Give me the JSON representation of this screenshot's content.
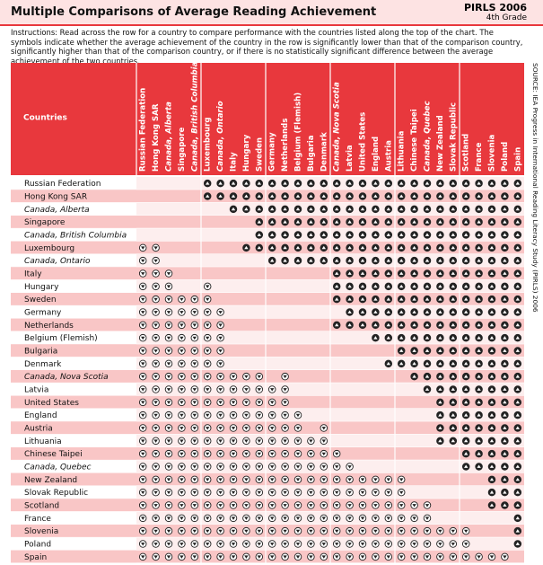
{
  "header": {
    "title": "Multiple Comparisons of Average Reading Achievement",
    "study": "PIRLS 2006",
    "grade": "4th Grade"
  },
  "instructions": "Instructions: Read across the row for a country to compare performance with the countries listed along the top of the chart. The symbols indicate whether the average achievement of the country in the row is significantly lower than that of the comparison country, significantly higher than that of the comparison country, or if there is no statistically significant difference between the average achievement of the two countries.",
  "source": "SOURCE: IEA Progress in International Reading Literacy Study (PIRLS) 2006",
  "table": {
    "countries_header": "Countries",
    "columns": [
      {
        "name": "Russian Federation"
      },
      {
        "name": "Hong Kong SAR"
      },
      {
        "name": "Canada, Alberta",
        "italic": true
      },
      {
        "name": "Singapore"
      },
      {
        "name": "Canada, British Columbia",
        "italic": true
      },
      {
        "name": "Luxembourg"
      },
      {
        "name": "Canada, Ontario",
        "italic": true
      },
      {
        "name": "Italy"
      },
      {
        "name": "Hungary"
      },
      {
        "name": "Sweden"
      },
      {
        "name": "Germany"
      },
      {
        "name": "Netherlands"
      },
      {
        "name": "Belgium (Flemish)"
      },
      {
        "name": "Bulgaria"
      },
      {
        "name": "Denmark"
      },
      {
        "name": "Canada, Nova Scotia",
        "italic": true
      },
      {
        "name": "Latvia"
      },
      {
        "name": "United States"
      },
      {
        "name": "England"
      },
      {
        "name": "Austria"
      },
      {
        "name": "Lithuania"
      },
      {
        "name": "Chinese Taipei"
      },
      {
        "name": "Canada, Quebec",
        "italic": true
      },
      {
        "name": "New Zealand"
      },
      {
        "name": "Slovak Republic"
      },
      {
        "name": "Scotland"
      },
      {
        "name": "France"
      },
      {
        "name": "Slovenia"
      },
      {
        "name": "Poland"
      },
      {
        "name": "Spain"
      }
    ],
    "rows": [
      {
        "country": "Russian Federation",
        "cells": [
          0,
          0,
          0,
          0,
          0,
          1,
          1,
          1,
          1,
          1,
          1,
          1,
          1,
          1,
          1,
          1,
          1,
          1,
          1,
          1,
          1,
          1,
          1,
          1,
          1,
          1,
          1,
          1,
          1,
          1
        ]
      },
      {
        "country": "Hong Kong SAR",
        "cells": [
          0,
          0,
          0,
          0,
          0,
          1,
          1,
          1,
          1,
          1,
          1,
          1,
          1,
          1,
          1,
          1,
          1,
          1,
          1,
          1,
          1,
          1,
          1,
          1,
          1,
          1,
          1,
          1,
          1,
          1
        ]
      },
      {
        "country": "Canada, Alberta",
        "italic": true,
        "cells": [
          0,
          0,
          0,
          0,
          0,
          0,
          0,
          1,
          1,
          1,
          1,
          1,
          1,
          1,
          1,
          1,
          1,
          1,
          1,
          1,
          1,
          1,
          1,
          1,
          1,
          1,
          1,
          1,
          1,
          1
        ]
      },
      {
        "country": "Singapore",
        "cells": [
          0,
          0,
          0,
          0,
          0,
          0,
          0,
          0,
          0,
          1,
          1,
          1,
          1,
          1,
          1,
          1,
          1,
          1,
          1,
          1,
          1,
          1,
          1,
          1,
          1,
          1,
          1,
          1,
          1,
          1
        ]
      },
      {
        "country": "Canada, British Columbia",
        "italic": true,
        "cells": [
          0,
          0,
          0,
          0,
          0,
          0,
          0,
          0,
          0,
          1,
          1,
          1,
          1,
          1,
          1,
          1,
          1,
          1,
          1,
          1,
          1,
          1,
          1,
          1,
          1,
          1,
          1,
          1,
          1,
          1
        ]
      },
      {
        "country": "Luxembourg",
        "cells": [
          -1,
          -1,
          0,
          0,
          0,
          0,
          0,
          0,
          1,
          1,
          1,
          1,
          1,
          1,
          1,
          1,
          1,
          1,
          1,
          1,
          1,
          1,
          1,
          1,
          1,
          1,
          1,
          1,
          1,
          1
        ]
      },
      {
        "country": "Canada, Ontario",
        "italic": true,
        "cells": [
          -1,
          -1,
          0,
          0,
          0,
          0,
          0,
          0,
          0,
          0,
          1,
          1,
          1,
          1,
          1,
          1,
          1,
          1,
          1,
          1,
          1,
          1,
          1,
          1,
          1,
          1,
          1,
          1,
          1,
          1
        ]
      },
      {
        "country": "Italy",
        "cells": [
          -1,
          -1,
          -1,
          0,
          0,
          0,
          0,
          0,
          0,
          0,
          0,
          0,
          0,
          0,
          0,
          1,
          1,
          1,
          1,
          1,
          1,
          1,
          1,
          1,
          1,
          1,
          1,
          1,
          1,
          1
        ]
      },
      {
        "country": "Hungary",
        "cells": [
          -1,
          -1,
          -1,
          0,
          0,
          -1,
          0,
          0,
          0,
          0,
          0,
          0,
          0,
          0,
          0,
          1,
          1,
          1,
          1,
          1,
          1,
          1,
          1,
          1,
          1,
          1,
          1,
          1,
          1,
          1
        ]
      },
      {
        "country": "Sweden",
        "cells": [
          -1,
          -1,
          -1,
          -1,
          -1,
          -1,
          0,
          0,
          0,
          0,
          0,
          0,
          0,
          0,
          0,
          1,
          1,
          1,
          1,
          1,
          1,
          1,
          1,
          1,
          1,
          1,
          1,
          1,
          1,
          1
        ]
      },
      {
        "country": "Germany",
        "cells": [
          -1,
          -1,
          -1,
          -1,
          -1,
          -1,
          -1,
          0,
          0,
          0,
          0,
          0,
          0,
          0,
          0,
          0,
          1,
          1,
          1,
          1,
          1,
          1,
          1,
          1,
          1,
          1,
          1,
          1,
          1,
          1
        ]
      },
      {
        "country": "Netherlands",
        "cells": [
          -1,
          -1,
          -1,
          -1,
          -1,
          -1,
          -1,
          0,
          0,
          0,
          0,
          0,
          0,
          0,
          0,
          1,
          1,
          1,
          1,
          1,
          1,
          1,
          1,
          1,
          1,
          1,
          1,
          1,
          1,
          1
        ]
      },
      {
        "country": "Belgium (Flemish)",
        "cells": [
          -1,
          -1,
          -1,
          -1,
          -1,
          -1,
          -1,
          0,
          0,
          0,
          0,
          0,
          0,
          0,
          0,
          0,
          0,
          0,
          1,
          1,
          1,
          1,
          1,
          1,
          1,
          1,
          1,
          1,
          1,
          1
        ]
      },
      {
        "country": "Bulgaria",
        "cells": [
          -1,
          -1,
          -1,
          -1,
          -1,
          -1,
          -1,
          0,
          0,
          0,
          0,
          0,
          0,
          0,
          0,
          0,
          0,
          0,
          0,
          0,
          1,
          1,
          1,
          1,
          1,
          1,
          1,
          1,
          1,
          1
        ]
      },
      {
        "country": "Denmark",
        "cells": [
          -1,
          -1,
          -1,
          -1,
          -1,
          -1,
          -1,
          0,
          0,
          0,
          0,
          0,
          0,
          0,
          0,
          0,
          0,
          0,
          0,
          1,
          1,
          1,
          1,
          1,
          1,
          1,
          1,
          1,
          1,
          1
        ]
      },
      {
        "country": "Canada, Nova Scotia",
        "italic": true,
        "cells": [
          -1,
          -1,
          -1,
          -1,
          -1,
          -1,
          -1,
          -1,
          -1,
          -1,
          0,
          -1,
          0,
          0,
          0,
          0,
          0,
          0,
          0,
          0,
          0,
          1,
          1,
          1,
          1,
          1,
          1,
          1,
          1,
          1
        ]
      },
      {
        "country": "Latvia",
        "cells": [
          -1,
          -1,
          -1,
          -1,
          -1,
          -1,
          -1,
          -1,
          -1,
          -1,
          -1,
          -1,
          0,
          0,
          0,
          0,
          0,
          0,
          0,
          0,
          0,
          0,
          1,
          1,
          1,
          1,
          1,
          1,
          1,
          1
        ]
      },
      {
        "country": "United States",
        "cells": [
          -1,
          -1,
          -1,
          -1,
          -1,
          -1,
          -1,
          -1,
          -1,
          -1,
          -1,
          -1,
          0,
          0,
          0,
          0,
          0,
          0,
          0,
          0,
          0,
          0,
          0,
          1,
          1,
          1,
          1,
          1,
          1,
          1
        ]
      },
      {
        "country": "England",
        "cells": [
          -1,
          -1,
          -1,
          -1,
          -1,
          -1,
          -1,
          -1,
          -1,
          -1,
          -1,
          -1,
          -1,
          0,
          0,
          0,
          0,
          0,
          0,
          0,
          0,
          0,
          0,
          1,
          1,
          1,
          1,
          1,
          1,
          1
        ]
      },
      {
        "country": "Austria",
        "cells": [
          -1,
          -1,
          -1,
          -1,
          -1,
          -1,
          -1,
          -1,
          -1,
          -1,
          -1,
          -1,
          -1,
          0,
          -1,
          0,
          0,
          0,
          0,
          0,
          0,
          0,
          0,
          1,
          1,
          1,
          1,
          1,
          1,
          1
        ]
      },
      {
        "country": "Lithuania",
        "cells": [
          -1,
          -1,
          -1,
          -1,
          -1,
          -1,
          -1,
          -1,
          -1,
          -1,
          -1,
          -1,
          -1,
          -1,
          -1,
          0,
          0,
          0,
          0,
          0,
          0,
          0,
          0,
          1,
          1,
          1,
          1,
          1,
          1,
          1
        ]
      },
      {
        "country": "Chinese Taipei",
        "cells": [
          -1,
          -1,
          -1,
          -1,
          -1,
          -1,
          -1,
          -1,
          -1,
          -1,
          -1,
          -1,
          -1,
          -1,
          -1,
          -1,
          0,
          0,
          0,
          0,
          0,
          0,
          0,
          0,
          0,
          1,
          1,
          1,
          1,
          1
        ]
      },
      {
        "country": "Canada, Quebec",
        "italic": true,
        "cells": [
          -1,
          -1,
          -1,
          -1,
          -1,
          -1,
          -1,
          -1,
          -1,
          -1,
          -1,
          -1,
          -1,
          -1,
          -1,
          -1,
          -1,
          0,
          0,
          0,
          0,
          0,
          0,
          0,
          0,
          1,
          1,
          1,
          1,
          1
        ]
      },
      {
        "country": "New Zealand",
        "cells": [
          -1,
          -1,
          -1,
          -1,
          -1,
          -1,
          -1,
          -1,
          -1,
          -1,
          -1,
          -1,
          -1,
          -1,
          -1,
          -1,
          -1,
          -1,
          -1,
          -1,
          -1,
          0,
          0,
          0,
          0,
          0,
          0,
          1,
          1,
          1
        ]
      },
      {
        "country": "Slovak Republic",
        "cells": [
          -1,
          -1,
          -1,
          -1,
          -1,
          -1,
          -1,
          -1,
          -1,
          -1,
          -1,
          -1,
          -1,
          -1,
          -1,
          -1,
          -1,
          -1,
          -1,
          -1,
          -1,
          0,
          0,
          0,
          0,
          0,
          0,
          1,
          1,
          1
        ]
      },
      {
        "country": "Scotland",
        "cells": [
          -1,
          -1,
          -1,
          -1,
          -1,
          -1,
          -1,
          -1,
          -1,
          -1,
          -1,
          -1,
          -1,
          -1,
          -1,
          -1,
          -1,
          -1,
          -1,
          -1,
          -1,
          -1,
          -1,
          0,
          0,
          0,
          0,
          1,
          1,
          1
        ]
      },
      {
        "country": "France",
        "cells": [
          -1,
          -1,
          -1,
          -1,
          -1,
          -1,
          -1,
          -1,
          -1,
          -1,
          -1,
          -1,
          -1,
          -1,
          -1,
          -1,
          -1,
          -1,
          -1,
          -1,
          -1,
          -1,
          -1,
          0,
          0,
          0,
          0,
          0,
          0,
          1
        ]
      },
      {
        "country": "Slovenia",
        "cells": [
          -1,
          -1,
          -1,
          -1,
          -1,
          -1,
          -1,
          -1,
          -1,
          -1,
          -1,
          -1,
          -1,
          -1,
          -1,
          -1,
          -1,
          -1,
          -1,
          -1,
          -1,
          -1,
          -1,
          -1,
          -1,
          -1,
          0,
          0,
          0,
          1
        ]
      },
      {
        "country": "Poland",
        "cells": [
          -1,
          -1,
          -1,
          -1,
          -1,
          -1,
          -1,
          -1,
          -1,
          -1,
          -1,
          -1,
          -1,
          -1,
          -1,
          -1,
          -1,
          -1,
          -1,
          -1,
          -1,
          -1,
          -1,
          -1,
          -1,
          -1,
          0,
          0,
          0,
          1
        ]
      },
      {
        "country": "Spain",
        "cells": [
          -1,
          -1,
          -1,
          -1,
          -1,
          -1,
          -1,
          -1,
          -1,
          -1,
          -1,
          -1,
          -1,
          -1,
          -1,
          -1,
          -1,
          -1,
          -1,
          -1,
          -1,
          -1,
          -1,
          -1,
          -1,
          -1,
          -1,
          -1,
          -1,
          0
        ]
      }
    ]
  }
}
